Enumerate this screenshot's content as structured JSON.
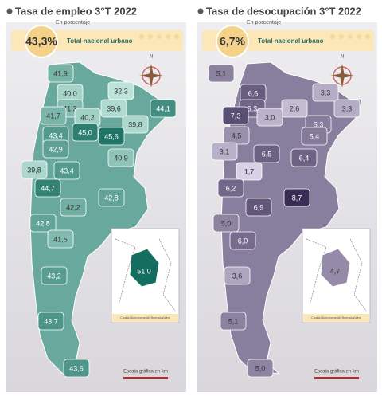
{
  "panels": [
    {
      "title": "Tasa de empleo 3°T 2022",
      "subtitle": "En porcentaje",
      "total": "43,3%",
      "total_label": "Total nacional urbano",
      "compass": "N",
      "regions": [
        "41,9",
        "32,3",
        "40,0",
        "41,3",
        "39,6",
        "44,1",
        "41,7",
        "40,2",
        "39,8",
        "43,4",
        "45,0",
        "45,6",
        "42,9",
        "40,9",
        "39,8",
        "43,4",
        "44,7",
        "42,8",
        "42,2",
        "42,8",
        "41,5",
        "43,2",
        "43,7",
        "43,6"
      ],
      "inset_value": "51,0",
      "inset_caption": "Ciudad Autónoma de Buenos Aires",
      "scale_label": "Escala gráfica en km"
    },
    {
      "title": "Tasa de desocupación 3°T 2022",
      "subtitle": "En porcentaje",
      "total": "6,7%",
      "total_label": "Total nacional urbano",
      "compass": "N",
      "regions": [
        "5,1",
        "3,3",
        "6,6",
        "6,3",
        "2,6",
        "3,3",
        "7,3",
        "3,0",
        "5,3",
        "4,5",
        "6,5",
        "5,4",
        "3,1",
        "6,4",
        "1,7",
        "6,2",
        "8,7",
        "6,9",
        "5,0",
        "6,0",
        "3,6",
        "5,1",
        "5,0"
      ],
      "inset_value": "4,7",
      "inset_caption": "Ciudad Autónoma de Buenos Aires",
      "scale_label": "Escala gráfica en km"
    }
  ]
}
